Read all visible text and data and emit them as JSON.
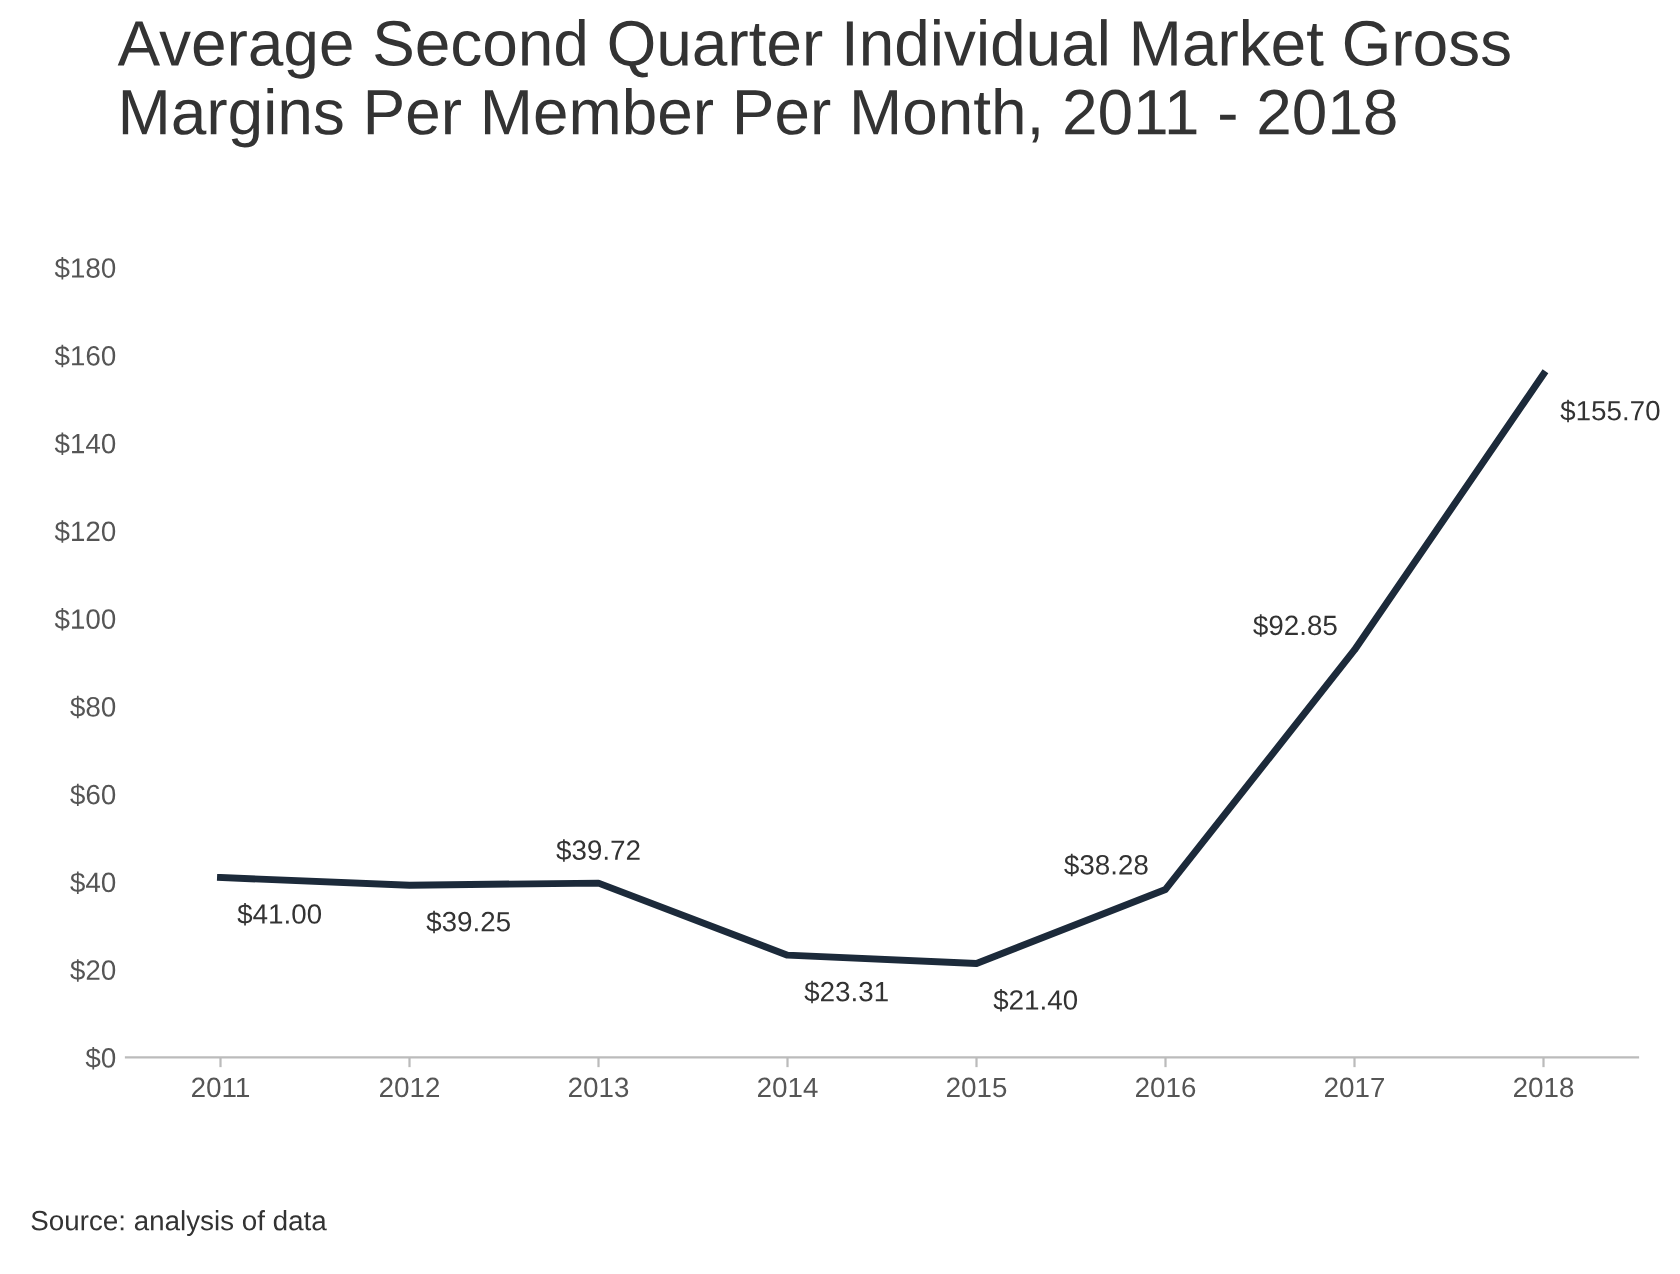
{
  "chart_data": {
    "type": "line",
    "title": "Average Second Quarter Individual Market Gross\nMargins Per Member Per Month, 2011 - 2018",
    "categories": [
      "2011",
      "2012",
      "2013",
      "2014",
      "2015",
      "2016",
      "2017",
      "2018"
    ],
    "series": [
      {
        "color": "#1c2a3a",
        "values": [
          41.0,
          39.25,
          39.72,
          23.31,
          21.4,
          38.28,
          92.85,
          155.7
        ],
        "value_labels": [
          "$41.00",
          "$39.25",
          "$39.72",
          "$23.31",
          "$21.40",
          "$38.28",
          "$92.85",
          "$155.70"
        ]
      }
    ],
    "ylim": [
      0,
      180
    ],
    "yticks": [
      {
        "value": 0,
        "label": "$0"
      },
      {
        "value": 20,
        "label": "$20"
      },
      {
        "value": 40,
        "label": "$40"
      },
      {
        "value": 60,
        "label": "$60"
      },
      {
        "value": 80,
        "label": "$80"
      },
      {
        "value": 100,
        "label": "$100"
      },
      {
        "value": 120,
        "label": "$120"
      },
      {
        "value": 140,
        "label": "$140"
      },
      {
        "value": 160,
        "label": "$160"
      },
      {
        "value": 180,
        "label": "$180"
      }
    ],
    "grid": false,
    "marker": "none",
    "line_style": "solid",
    "annotations": [
      "Source: analysis of data"
    ]
  }
}
